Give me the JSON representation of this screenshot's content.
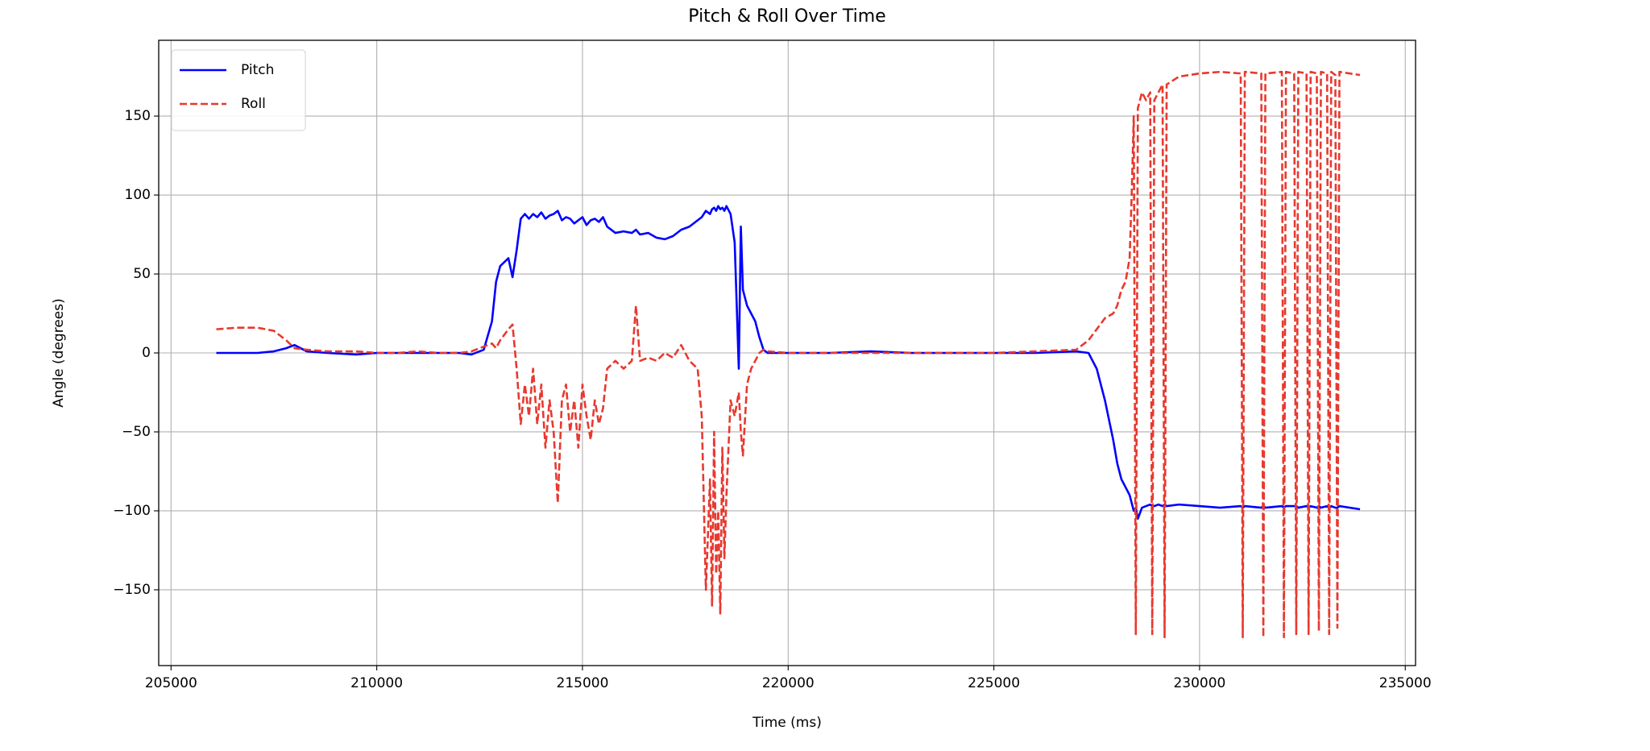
{
  "chart_data": {
    "type": "line",
    "title": "Pitch & Roll Over Time",
    "x_label": "Time (ms)",
    "y_label": "Angle (degrees)",
    "x": [
      206100,
      206600,
      207100,
      207500,
      207800,
      208000,
      208300,
      208800,
      209500,
      210000,
      210500,
      211000,
      211500,
      212000,
      212300,
      212600,
      212800,
      212900,
      213000,
      213200,
      213300,
      213400,
      213500,
      213600,
      213700,
      213800,
      213900,
      214000,
      214100,
      214200,
      214300,
      214400,
      214500,
      214600,
      214700,
      214800,
      214900,
      215000,
      215100,
      215200,
      215300,
      215400,
      215500,
      215600,
      215800,
      216000,
      216200,
      216300,
      216400,
      216600,
      216800,
      217000,
      217200,
      217400,
      217600,
      217800,
      217900,
      218000,
      218100,
      218150,
      218200,
      218250,
      218300,
      218350,
      218400,
      218450,
      218500,
      218600,
      218700,
      218800,
      218850,
      218900,
      219000,
      219100,
      219200,
      219300,
      219400,
      219500,
      220000,
      221000,
      222000,
      223000,
      224000,
      225000,
      226000,
      227000,
      227300,
      227500,
      227700,
      227900,
      228000,
      228100,
      228200,
      228300,
      228350,
      228400,
      228450,
      228500,
      228600,
      228700,
      228800,
      228850,
      228900,
      229000,
      229100,
      229150,
      229200,
      229500,
      230000,
      230500,
      231000,
      231050,
      231100,
      231500,
      231550,
      231600,
      232000,
      232050,
      232100,
      232300,
      232350,
      232400,
      232600,
      232650,
      232700,
      232850,
      232900,
      232950,
      233100,
      233150,
      233200,
      233300,
      233350,
      233400,
      233900
    ],
    "series": [
      {
        "name": "Pitch",
        "color": "#0000ff",
        "linestyle": "solid",
        "values": [
          0,
          0,
          0,
          1,
          3,
          5,
          1,
          0,
          -1,
          0,
          0,
          0,
          0,
          0,
          -1,
          2,
          20,
          45,
          55,
          60,
          48,
          65,
          85,
          88,
          85,
          88,
          86,
          89,
          85,
          87,
          88,
          90,
          84,
          86,
          85,
          82,
          84,
          86,
          81,
          84,
          85,
          83,
          86,
          80,
          76,
          77,
          76,
          78,
          75,
          76,
          73,
          72,
          74,
          78,
          80,
          84,
          86,
          90,
          88,
          91,
          92,
          90,
          93,
          91,
          92,
          90,
          93,
          88,
          70,
          -10,
          80,
          40,
          30,
          25,
          20,
          10,
          2,
          0,
          0,
          0,
          1,
          0,
          0,
          0,
          0,
          1,
          0,
          -10,
          -30,
          -55,
          -70,
          -80,
          -85,
          -90,
          -95,
          -100,
          -98,
          -105,
          -98,
          -97,
          -96,
          -97,
          -97,
          -96,
          -97,
          -96,
          -97,
          -96,
          -97,
          -98,
          -97,
          -98,
          -97,
          -98,
          -97,
          -98,
          -97,
          -98,
          -97,
          -97,
          -97,
          -98,
          -97,
          -98,
          -97,
          -98,
          -97,
          -98,
          -97,
          -98,
          -97,
          -98,
          -98,
          -97,
          -99
        ]
      },
      {
        "name": "Roll",
        "color": "#e8392f",
        "linestyle": "dashed",
        "values": [
          15,
          16,
          16,
          14,
          8,
          3,
          2,
          1,
          1,
          0,
          0,
          1,
          0,
          0,
          1,
          4,
          6,
          3,
          8,
          15,
          18,
          -10,
          -45,
          -20,
          -40,
          -10,
          -45,
          -20,
          -60,
          -30,
          -50,
          -95,
          -30,
          -20,
          -50,
          -30,
          -60,
          -20,
          -40,
          -55,
          -30,
          -45,
          -35,
          -10,
          -5,
          -10,
          -5,
          30,
          -5,
          -3,
          -5,
          0,
          -3,
          5,
          -5,
          -10,
          -40,
          -150,
          -80,
          -160,
          -50,
          -140,
          -100,
          -165,
          -60,
          -130,
          -90,
          -30,
          -40,
          -25,
          -50,
          -65,
          -20,
          -10,
          -5,
          0,
          2,
          1,
          0,
          0,
          0,
          0,
          0,
          0,
          1,
          2,
          8,
          15,
          22,
          25,
          30,
          40,
          45,
          60,
          100,
          150,
          -178,
          155,
          165,
          160,
          165,
          -178,
          160,
          165,
          170,
          -180,
          170,
          175,
          177,
          178,
          177,
          -180,
          178,
          177,
          -180,
          177,
          178,
          -180,
          178,
          177,
          -178,
          178,
          177,
          -178,
          178,
          177,
          -176,
          178,
          177,
          -178,
          178,
          176,
          -174,
          178,
          176
        ]
      }
    ],
    "xlim": [
      204700,
      235250
    ],
    "ylim": [
      -198,
      198
    ],
    "xticks": [
      205000,
      210000,
      215000,
      220000,
      225000,
      230000,
      235000
    ],
    "yticks": [
      {
        "value": -150,
        "label": "−150"
      },
      {
        "value": -100,
        "label": "−100"
      },
      {
        "value": -50,
        "label": "−50"
      },
      0,
      50,
      100,
      150
    ],
    "grid": true,
    "legend": "upper left"
  }
}
